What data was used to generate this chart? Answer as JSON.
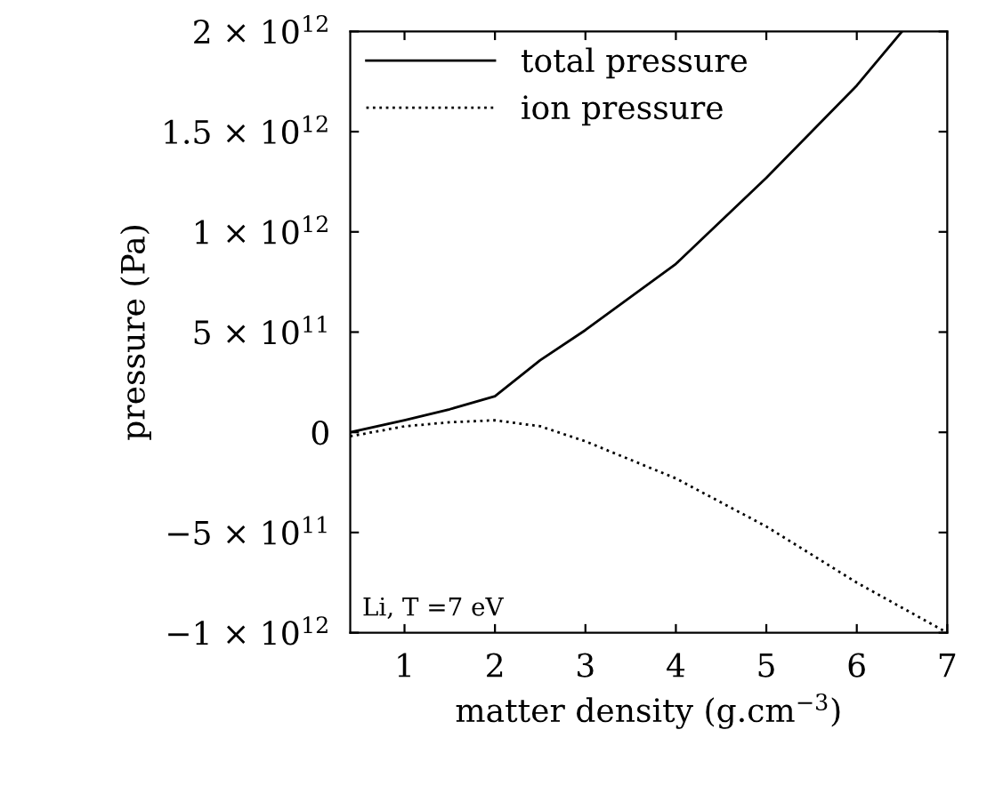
{
  "chart_data": {
    "type": "line",
    "xlabel": "matter density (g.cm$^{−3}$)",
    "ylabel": "pressure (Pa)",
    "series": [
      {
        "name": "total pressure",
        "color": "#000000",
        "line_style": "solid",
        "x": [
          0.4,
          1,
          1.5,
          2,
          2.5,
          3,
          4,
          5,
          6,
          6.5
        ],
        "values": [
          0,
          60000000000.0,
          115000000000.0,
          180000000000.0,
          360000000000.0,
          510000000000.0,
          840000000000.0,
          1270000000000.0,
          1730000000000.0,
          2000000000000.0
        ]
      },
      {
        "name": "ion pressure",
        "color": "#000000",
        "line_style": "dotted",
        "x": [
          0.4,
          1,
          1.5,
          2,
          2.5,
          3,
          4,
          5,
          6,
          7
        ],
        "values": [
          -20000000000.0,
          30000000000.0,
          50000000000.0,
          60000000000.0,
          30000000000.0,
          -45000000000.0,
          -230000000000.0,
          -470000000000.0,
          -750000000000.0,
          -1000000000000.0
        ]
      }
    ],
    "xlim": [
      0.4,
      7
    ],
    "xticks": [
      1,
      2,
      3,
      4,
      5,
      6,
      7
    ],
    "ylim": [
      -1000000000000.0,
      2000000000000.0
    ],
    "yticks": [
      {
        "value": -1000000000000.0,
        "label": "−1 × 10$^{12}$"
      },
      {
        "value": -500000000000.0,
        "label": "−5 × 10$^{11}$"
      },
      {
        "value": 0,
        "label": "0"
      },
      {
        "value": 500000000000.0,
        "label": "5 × 10$^{11}$"
      },
      {
        "value": 1000000000000.0,
        "label": "1 × 10$^{12}$"
      },
      {
        "value": 1500000000000.0,
        "label": "1.5 × 10$^{12}$"
      },
      {
        "value": 2000000000000.0,
        "label": "2 × 10$^{12}$"
      }
    ],
    "legend": "top left",
    "grid": false,
    "annotations": [
      "Li, T =7 eV"
    ]
  }
}
